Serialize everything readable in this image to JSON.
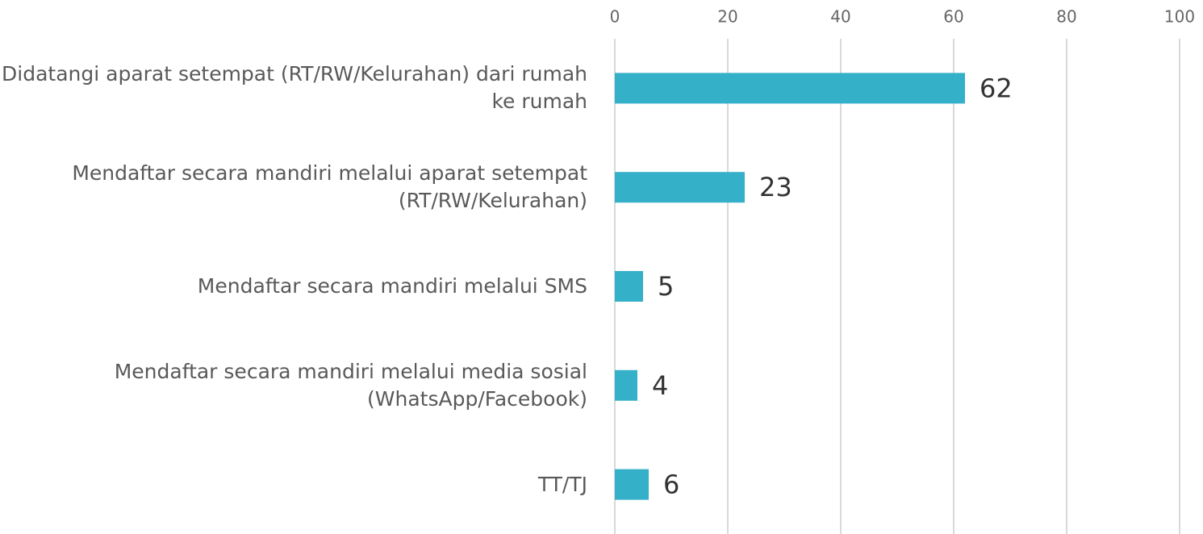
{
  "chart_data": {
    "type": "bar",
    "orientation": "horizontal",
    "categories": [
      "Didatangi aparat setempat (RT/RW/Kelurahan) dari rumah ke rumah",
      "Mendaftar secara mandiri melalui aparat setempat (RT/RW/Kelurahan)",
      "Mendaftar secara mandiri melalui SMS",
      "Mendaftar secara mandiri melalui media sosial (WhatsApp/Facebook)",
      "TT/TJ"
    ],
    "values": [
      62,
      23,
      5,
      4,
      6
    ],
    "color": "#35b0c9",
    "xlim": [
      0,
      100
    ],
    "xticks": [
      0,
      20,
      40,
      60,
      80,
      100
    ],
    "grid": true
  }
}
